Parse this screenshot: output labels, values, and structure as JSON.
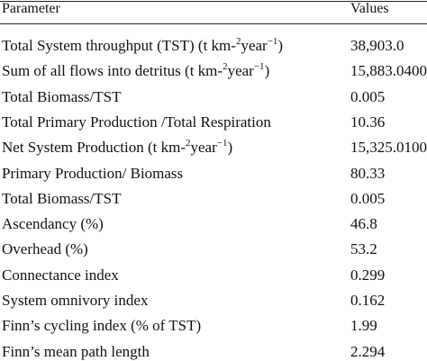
{
  "table": {
    "header": [
      "Parameter",
      "Values"
    ],
    "rows": [
      {
        "parameter": [
          {
            "text": "Total System throughput (TST) (t km-"
          },
          {
            "sup": "2"
          },
          {
            "text": "year"
          },
          {
            "sup": "−1"
          },
          {
            "text": ")"
          }
        ],
        "value": "38,903.0"
      },
      {
        "parameter": [
          {
            "text": "Sum of all flows into detritus (t km-"
          },
          {
            "sup": "2"
          },
          {
            "text": "year"
          },
          {
            "sup": "−1"
          },
          {
            "text": ")"
          }
        ],
        "value": "15,883.0400"
      },
      {
        "parameter": [
          {
            "text": "Total Biomass/TST"
          }
        ],
        "value": "0.005"
      },
      {
        "parameter": [
          {
            "text": "Total Primary Production /Total Respiration"
          }
        ],
        "value": "10.36"
      },
      {
        "parameter": [
          {
            "text": "Net System Production (t km-"
          },
          {
            "sup": "2"
          },
          {
            "text": "year"
          },
          {
            "sup": "−1"
          },
          {
            "text": ")"
          }
        ],
        "value": "15,325.0100"
      },
      {
        "parameter": [
          {
            "text": "Primary Production/ Biomass"
          }
        ],
        "value": "80.33"
      },
      {
        "parameter": [
          {
            "text": "Total Biomass/TST"
          }
        ],
        "value": "0.005"
      },
      {
        "parameter": [
          {
            "text": "Ascendancy (%)"
          }
        ],
        "value": "46.8"
      },
      {
        "parameter": [
          {
            "text": "Overhead (%)"
          }
        ],
        "value": "53.2"
      },
      {
        "parameter": [
          {
            "text": "Connectance index"
          }
        ],
        "value": "0.299"
      },
      {
        "parameter": [
          {
            "text": "System omnivory index"
          }
        ],
        "value": "0.162"
      },
      {
        "parameter": [
          {
            "text": "Finn’s cycling index (% of TST)"
          }
        ],
        "value": "1.99"
      },
      {
        "parameter": [
          {
            "text": "Finn’s mean path length"
          }
        ],
        "value": "2.294"
      }
    ]
  }
}
